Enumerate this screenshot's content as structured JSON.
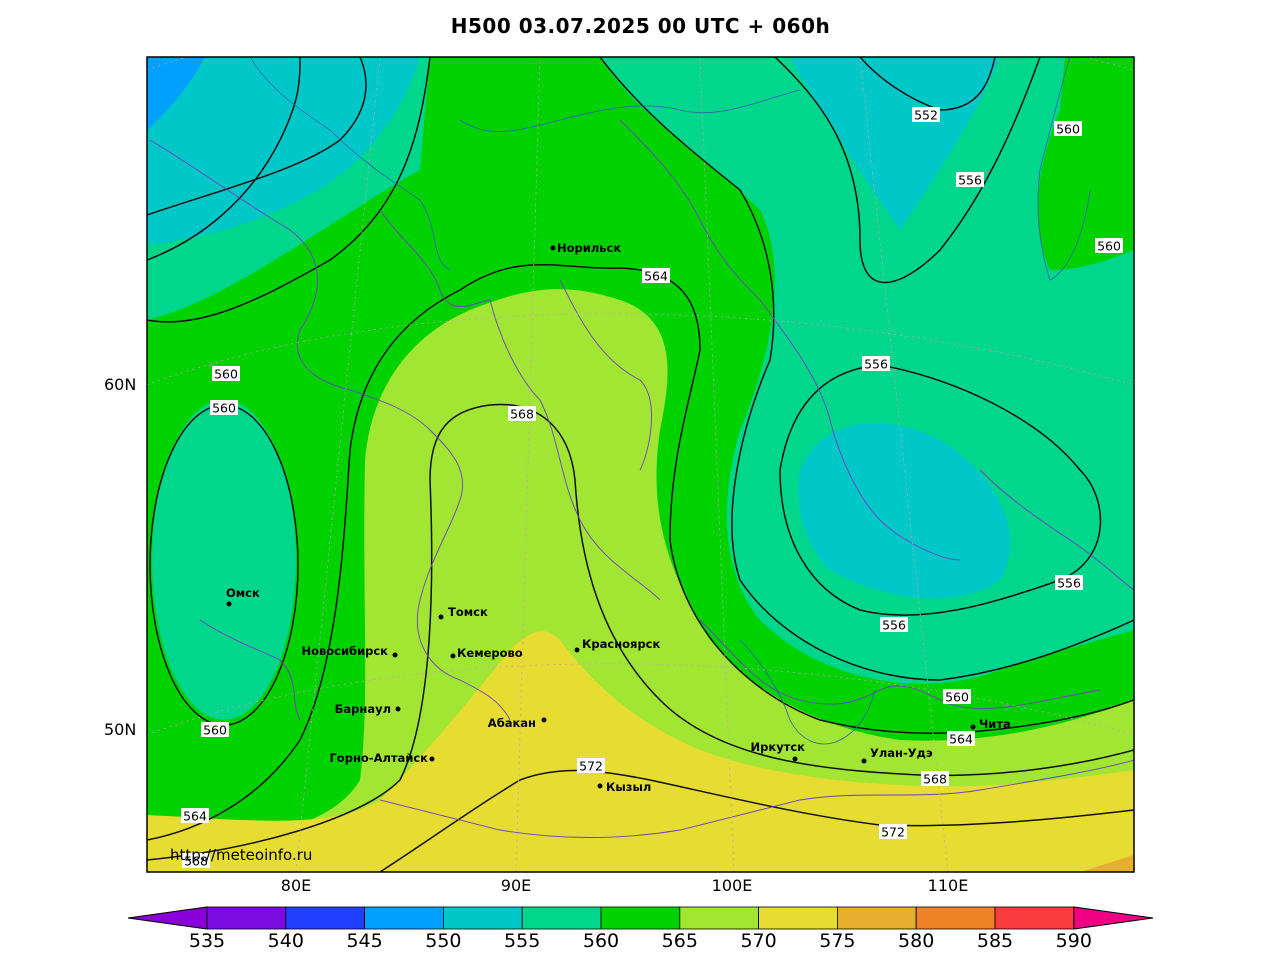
{
  "title": "H500  03.07.2025 00 UTC + 060h",
  "credit": "http://meteoinfo.ru",
  "lat_labels": [
    "60N",
    "50N"
  ],
  "lon_labels": [
    "80E",
    "90E",
    "100E",
    "110E"
  ],
  "colorbar": {
    "values": [
      "535",
      "540",
      "545",
      "550",
      "555",
      "560",
      "565",
      "570",
      "575",
      "580",
      "585",
      "590"
    ],
    "colors": [
      "#8a00d8",
      "#7a0ce0",
      "#2040ff",
      "#00a0ff",
      "#00c8c8",
      "#00d68c",
      "#00d200",
      "#a0e632",
      "#e6dc32",
      "#e6af2d",
      "#f08228",
      "#fa3c3c",
      "#f00082"
    ]
  },
  "cities": [
    {
      "name": "Норильск"
    },
    {
      "name": "Омск"
    },
    {
      "name": "Томск"
    },
    {
      "name": "Новосибирск"
    },
    {
      "name": "Кемерово"
    },
    {
      "name": "Красноярск"
    },
    {
      "name": "Барнаул"
    },
    {
      "name": "Абакан"
    },
    {
      "name": "Горно-Алтайск"
    },
    {
      "name": "Кызыл"
    },
    {
      "name": "Иркутск"
    },
    {
      "name": "Улан-Удэ"
    },
    {
      "name": "Чита"
    }
  ],
  "contour_labels": [
    "552",
    "560",
    "556",
    "560",
    "564",
    "560",
    "560",
    "556",
    "568",
    "556",
    "556",
    "560",
    "564",
    "568",
    "572",
    "572",
    "560",
    "564",
    "568"
  ]
}
